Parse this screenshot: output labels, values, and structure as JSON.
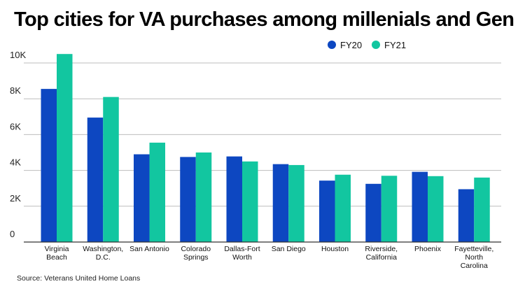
{
  "chart_data": {
    "type": "bar",
    "title": "Top cities for VA purchases among millenials and Gen Z",
    "source": "Source: Veterans United Home Loans",
    "categories": [
      [
        "Virginia",
        "Beach"
      ],
      [
        "Washington,",
        "D.C."
      ],
      [
        "San Antonio"
      ],
      [
        "Colorado",
        "Springs"
      ],
      [
        "Dallas-Fort",
        "Worth"
      ],
      [
        "San Diego"
      ],
      [
        "Houston"
      ],
      [
        "Riverside,",
        "California"
      ],
      [
        "Phoenix"
      ],
      [
        "Fayetteville,",
        "North",
        "Carolina"
      ]
    ],
    "series": [
      {
        "name": "FY20",
        "color": "#0d47c1",
        "values": [
          8550,
          6950,
          4900,
          4750,
          4780,
          4350,
          3430,
          3250,
          3920,
          2950
        ]
      },
      {
        "name": "FY21",
        "color": "#12c6a0",
        "values": [
          10500,
          8100,
          5550,
          5000,
          4500,
          4300,
          3760,
          3700,
          3680,
          3600
        ]
      }
    ],
    "yticks": [
      0,
      2000,
      4000,
      6000,
      8000,
      10000
    ],
    "ytick_labels": [
      "0",
      "2K",
      "4K",
      "6K",
      "8K",
      "10K"
    ],
    "ylim": [
      0,
      10500
    ],
    "xlabel": "",
    "ylabel": "",
    "grid": true,
    "legend_position": "top-right"
  }
}
